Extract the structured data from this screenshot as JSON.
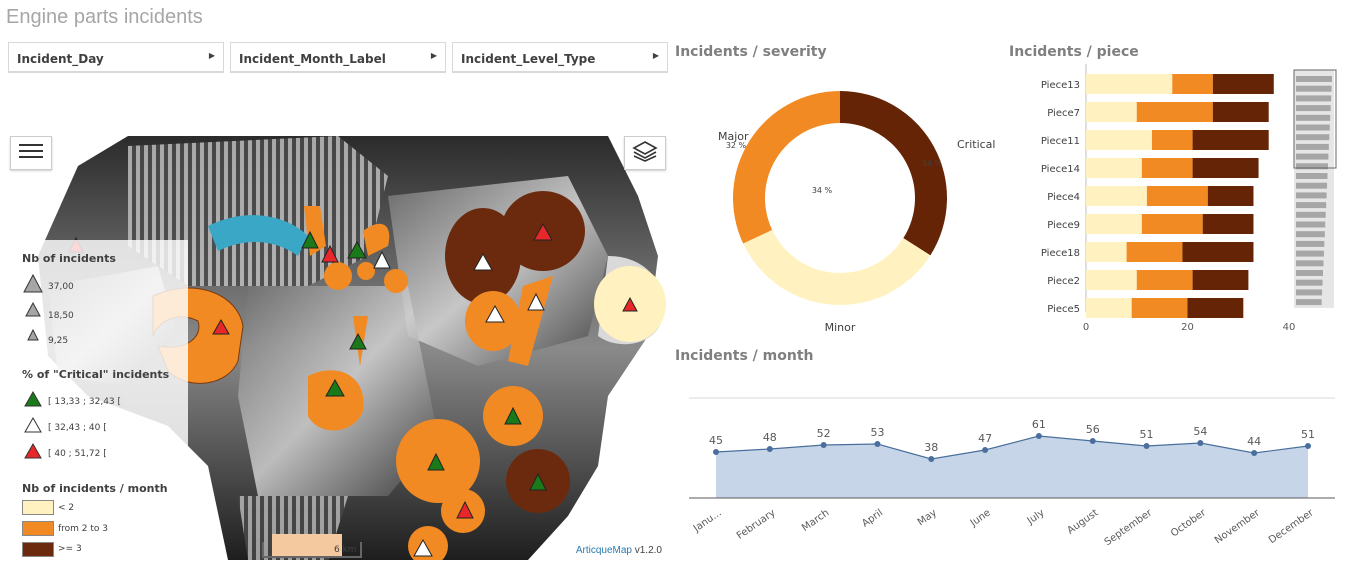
{
  "app_title": "Engine parts incidents",
  "filters": [
    {
      "label": "Incident_Day"
    },
    {
      "label": "Incident_Month_Label"
    },
    {
      "label": "Incident_Level_Type"
    }
  ],
  "map": {
    "legend": {
      "size_title": "Nb of incidents",
      "size_items": [
        "37,00",
        "18,50",
        "9,25"
      ],
      "critical_title": "% of \"Critical\" incidents",
      "critical_items": [
        {
          "label": "[ 13,33 ; 32,43 [",
          "color": "#1a7a1a"
        },
        {
          "label": "[ 32,43 ; 40 [",
          "color": "#ffffff"
        },
        {
          "label": "[ 40 ; 51,72 [",
          "color": "#e8272a"
        }
      ],
      "month_title": "Nb of incidents / month",
      "month_items": [
        {
          "label": "< 2",
          "color": "#fff2c0"
        },
        {
          "label": "from 2 to 3",
          "color": "#f28a23"
        },
        {
          "label": ">= 3",
          "color": "#6b2a0e"
        }
      ]
    },
    "scale_label": "6 km",
    "brand": "ArticqueMap",
    "version": " v1.2.0",
    "menu_icon": "hamburger-icon",
    "layers_icon": "layers-icon"
  },
  "chart_data": [
    {
      "type": "pie",
      "title": "Incidents / severity",
      "donut": true,
      "slices": [
        {
          "label": "Critical",
          "value": 34,
          "value_label": "34 %",
          "color": "#662407"
        },
        {
          "label": "Minor",
          "value": 34,
          "value_label": "34 %",
          "color": "#fff2c0"
        },
        {
          "label": "Major",
          "value": 32,
          "value_label": "32 %",
          "color": "#f28a23"
        }
      ]
    },
    {
      "type": "bar",
      "orientation": "horizontal",
      "stacked": true,
      "title": "Incidents / piece",
      "categories": [
        "Piece13",
        "Piece7",
        "Piece11",
        "Piece14",
        "Piece4",
        "Piece9",
        "Piece18",
        "Piece2",
        "Piece5"
      ],
      "series": [
        {
          "values": [
            17,
            10,
            13,
            11,
            12,
            11,
            8,
            10,
            9
          ],
          "color": "#fff2c0"
        },
        {
          "values": [
            8,
            15,
            8,
            10,
            12,
            12,
            11,
            11,
            11
          ],
          "color": "#f28a23"
        },
        {
          "values": [
            12,
            11,
            15,
            13,
            9,
            10,
            14,
            11,
            11
          ],
          "color": "#662407"
        }
      ],
      "xlim": [
        0,
        48
      ],
      "xticks": [
        "0",
        "20",
        "40"
      ]
    },
    {
      "type": "area",
      "title": "Incidents / month",
      "categories": [
        "Janu...",
        "February",
        "March",
        "April",
        "May",
        "June",
        "July",
        "August",
        "September",
        "October",
        "November",
        "December"
      ],
      "values": [
        45,
        48,
        52,
        53,
        38,
        47,
        61,
        56,
        51,
        54,
        44,
        51
      ],
      "data_labels": [
        "45",
        "48",
        "52",
        "53",
        "38",
        "47",
        "61",
        "56",
        "51",
        "54",
        "44",
        "51"
      ],
      "ylim": [
        0,
        100
      ],
      "line_color": "#4a6f9c",
      "fill_color": "#c6d5e8"
    }
  ]
}
